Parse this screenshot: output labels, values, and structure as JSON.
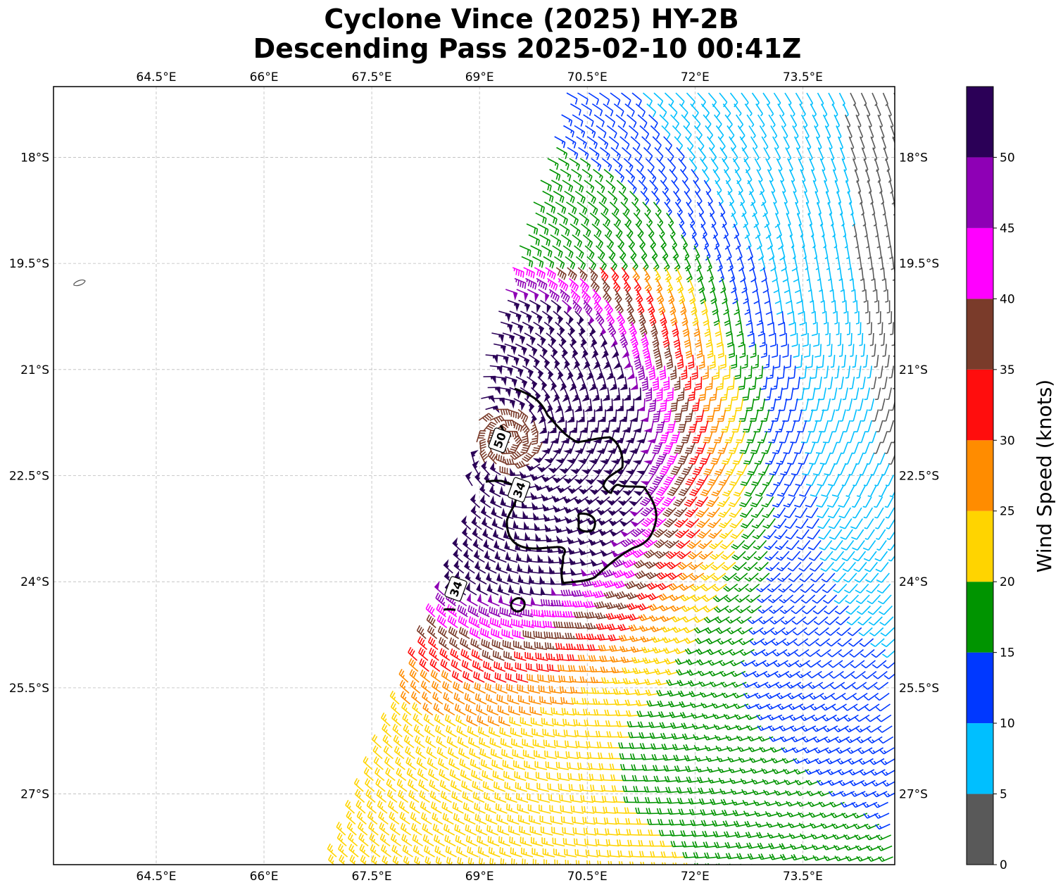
{
  "title": {
    "line1": "Cyclone Vince (2025) HY-2B",
    "line2": "Descending Pass 2025-02-10 00:41Z"
  },
  "map": {
    "lon_range": [
      63.07,
      74.78
    ],
    "lat_range": [
      -28.0,
      -17.0
    ],
    "lon_ticks": [
      64.5,
      66,
      67.5,
      69,
      70.5,
      72,
      73.5
    ],
    "lon_tick_labels": [
      "64.5°E",
      "66°E",
      "67.5°E",
      "69°E",
      "70.5°E",
      "72°E",
      "73.5°E"
    ],
    "lat_ticks": [
      -18,
      -19.5,
      -21,
      -22.5,
      -24,
      -25.5,
      -27
    ],
    "lat_tick_labels": [
      "18°S",
      "19.5°S",
      "21°S",
      "22.5°S",
      "24°S",
      "25.5°S",
      "27°S"
    ],
    "storm_center": {
      "lon": 69.4,
      "lat": -22.0
    },
    "contour_labels": [
      {
        "text": "50",
        "lon": 69.28,
        "lat": -22.0
      },
      {
        "text": "34",
        "lon": 69.55,
        "lat": -22.7
      },
      {
        "text": "34",
        "lon": 68.67,
        "lat": -24.1
      }
    ]
  },
  "colorbar": {
    "label": "Wind Speed (knots)",
    "bounds": [
      0,
      5,
      10,
      15,
      20,
      25,
      30,
      35,
      40,
      45,
      50,
      55
    ],
    "tick_labels": [
      "0",
      "5",
      "10",
      "15",
      "20",
      "25",
      "30",
      "35",
      "40",
      "45",
      "50"
    ],
    "colors": [
      "#595959",
      "#00bfff",
      "#0038ff",
      "#009400",
      "#ffd400",
      "#ff8c00",
      "#ff0d0d",
      "#7a3b2a",
      "#ff00ff",
      "#8e00b5",
      "#2b0057"
    ]
  }
}
